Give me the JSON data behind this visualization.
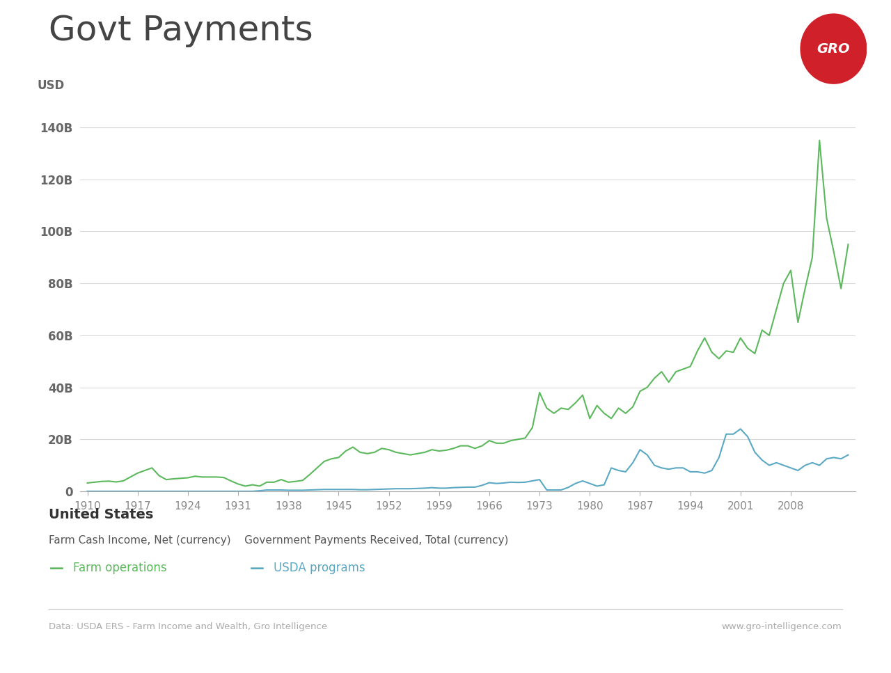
{
  "title": "Govt Payments",
  "ylabel": "USD",
  "background_color": "#ffffff",
  "title_fontsize": 36,
  "farm_ops_color": "#5cb85c",
  "usda_color": "#5ba8c4",
  "farm_ops_label": "Farm operations",
  "usda_label": "USDA programs",
  "subtitle1": "United States",
  "subtitle2": "Farm Cash Income, Net (currency)    Government Payments Received, Total (currency)",
  "footer_left": "Data: USDA ERS - Farm Income and Wealth, Gro Intelligence",
  "footer_right": "www.gro-intelligence.com",
  "years": [
    1910,
    1911,
    1912,
    1913,
    1914,
    1915,
    1916,
    1917,
    1918,
    1919,
    1920,
    1921,
    1922,
    1923,
    1924,
    1925,
    1926,
    1927,
    1928,
    1929,
    1930,
    1931,
    1932,
    1933,
    1934,
    1935,
    1936,
    1937,
    1938,
    1939,
    1940,
    1941,
    1942,
    1943,
    1944,
    1945,
    1946,
    1947,
    1948,
    1949,
    1950,
    1951,
    1952,
    1953,
    1954,
    1955,
    1956,
    1957,
    1958,
    1959,
    1960,
    1961,
    1962,
    1963,
    1964,
    1965,
    1966,
    1967,
    1968,
    1969,
    1970,
    1971,
    1972,
    1973,
    1974,
    1975,
    1976,
    1977,
    1978,
    1979,
    1980,
    1981,
    1982,
    1983,
    1984,
    1985,
    1986,
    1987,
    1988,
    1989,
    1990,
    1991,
    1992,
    1993,
    1994,
    1995,
    1996,
    1997,
    1998,
    1999,
    2000,
    2001,
    2002,
    2003,
    2004,
    2005,
    2006,
    2007,
    2008,
    2009,
    2010,
    2011,
    2012,
    2013,
    2014,
    2015,
    2016
  ],
  "farm_ops_values": [
    3.2,
    3.5,
    3.8,
    3.9,
    3.6,
    4.0,
    5.5,
    7.0,
    8.0,
    9.0,
    6.0,
    4.5,
    4.8,
    5.0,
    5.2,
    5.8,
    5.5,
    5.5,
    5.5,
    5.3,
    4.0,
    2.8,
    2.0,
    2.5,
    2.0,
    3.5,
    3.5,
    4.5,
    3.5,
    3.8,
    4.2,
    6.5,
    9.0,
    11.5,
    12.5,
    13.0,
    15.5,
    17.0,
    15.0,
    14.5,
    15.0,
    16.5,
    16.0,
    15.0,
    14.5,
    14.0,
    14.5,
    15.0,
    16.0,
    15.5,
    15.8,
    16.5,
    17.5,
    17.5,
    16.5,
    17.5,
    19.5,
    18.5,
    18.5,
    19.5,
    20.0,
    20.5,
    24.5,
    38.0,
    32.0,
    30.0,
    32.0,
    31.5,
    34.0,
    37.0,
    28.0,
    33.0,
    30.0,
    28.0,
    32.0,
    30.0,
    32.5,
    38.5,
    40.0,
    43.5,
    46.0,
    42.0,
    46.0,
    47.0,
    48.0,
    54.0,
    59.0,
    53.5,
    51.0,
    54.0,
    53.5,
    59.0,
    55.0,
    53.0,
    62.0,
    60.0,
    70.0,
    80.0,
    85.0,
    65.0,
    78.0,
    90.0,
    135.0,
    105.0,
    92.0,
    78.0,
    95.0
  ],
  "usda_values": [
    0.0,
    0.0,
    0.0,
    0.0,
    0.0,
    0.0,
    0.0,
    0.0,
    0.0,
    0.0,
    0.0,
    0.0,
    0.0,
    0.0,
    0.0,
    0.0,
    0.0,
    0.0,
    0.0,
    0.0,
    0.0,
    0.0,
    0.0,
    0.0,
    0.2,
    0.5,
    0.5,
    0.5,
    0.4,
    0.4,
    0.4,
    0.5,
    0.6,
    0.7,
    0.7,
    0.7,
    0.7,
    0.7,
    0.6,
    0.6,
    0.7,
    0.8,
    0.9,
    1.0,
    1.0,
    1.0,
    1.1,
    1.2,
    1.4,
    1.2,
    1.2,
    1.4,
    1.5,
    1.6,
    1.6,
    2.3,
    3.3,
    3.0,
    3.2,
    3.5,
    3.4,
    3.5,
    4.0,
    4.5,
    0.5,
    0.5,
    0.5,
    1.5,
    3.0,
    4.0,
    3.0,
    2.0,
    2.5,
    9.0,
    8.0,
    7.5,
    11.0,
    16.0,
    14.0,
    10.0,
    9.0,
    8.5,
    9.0,
    9.0,
    7.5,
    7.5,
    7.0,
    8.0,
    13.0,
    22.0,
    22.0,
    24.0,
    21.0,
    15.0,
    12.0,
    10.0,
    11.0,
    10.0,
    9.0,
    8.0,
    10.0,
    11.0,
    10.0,
    12.5,
    13.0,
    12.5,
    14.0
  ],
  "ylim": [
    0,
    145
  ],
  "yticks": [
    0,
    20,
    40,
    60,
    80,
    100,
    120,
    140
  ],
  "ytick_labels": [
    "0",
    "20B",
    "40B",
    "60B",
    "80B",
    "100B",
    "120B",
    "140B"
  ],
  "xtick_years": [
    1910,
    1917,
    1924,
    1931,
    1938,
    1945,
    1952,
    1959,
    1966,
    1973,
    1980,
    1987,
    1994,
    2001,
    2008
  ],
  "gro_color": "#d0202a"
}
